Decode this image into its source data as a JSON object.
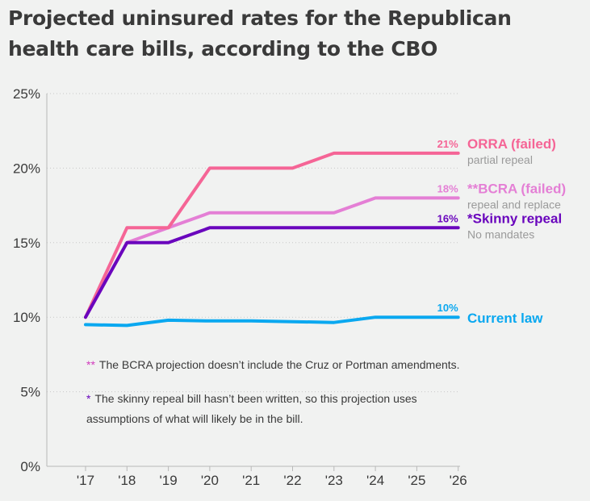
{
  "title": "Projected uninsured rates for the Republican health care bills, according to the CBO",
  "chart_data": {
    "type": "line",
    "x": [
      "'17",
      "'18",
      "'19",
      "'20",
      "'21",
      "'22",
      "'23",
      "'24",
      "'25",
      "'26"
    ],
    "ylim": [
      0,
      25
    ],
    "yticks": [
      0,
      5,
      10,
      15,
      20,
      25
    ],
    "ytick_labels": [
      "0%",
      "5%",
      "10%",
      "15%",
      "20%",
      "25%"
    ],
    "series": [
      {
        "key": "current",
        "name": "Current law",
        "subtitle": "",
        "end_label": "10%",
        "color": "#0aa8f0",
        "values": [
          9.5,
          9.45,
          9.8,
          9.75,
          9.75,
          9.7,
          9.65,
          10.0,
          10.0,
          10.0
        ]
      },
      {
        "key": "bcra",
        "name": "**BCRA (failed)",
        "subtitle": "repeal and replace",
        "end_label": "18%",
        "color": "#e47fd5",
        "values": [
          10,
          15,
          16,
          17,
          17,
          17,
          17,
          18,
          18,
          18
        ]
      },
      {
        "key": "orra",
        "name": "ORRA (failed)",
        "subtitle": "partial repeal",
        "end_label": "21%",
        "color": "#f56596",
        "values": [
          10,
          16,
          16,
          20,
          20,
          20,
          21,
          21,
          21,
          21
        ]
      },
      {
        "key": "skinny",
        "name": "*Skinny repeal",
        "subtitle": "No mandates",
        "end_label": "16%",
        "color": "#6a06bd",
        "values": [
          10,
          15,
          15,
          16,
          16,
          16,
          16,
          16,
          16,
          16
        ]
      }
    ],
    "notes": [
      {
        "marker": "**",
        "marker_color": "#d13bbd",
        "lines": [
          "The BCRA projection doesn’t include the Cruz or Portman amendments."
        ]
      },
      {
        "marker": "*",
        "marker_color": "#6a06bd",
        "lines": [
          "The skinny repeal bill hasn’t been written, so this projection uses",
          "assumptions of what will likely be in the bill."
        ]
      }
    ]
  }
}
